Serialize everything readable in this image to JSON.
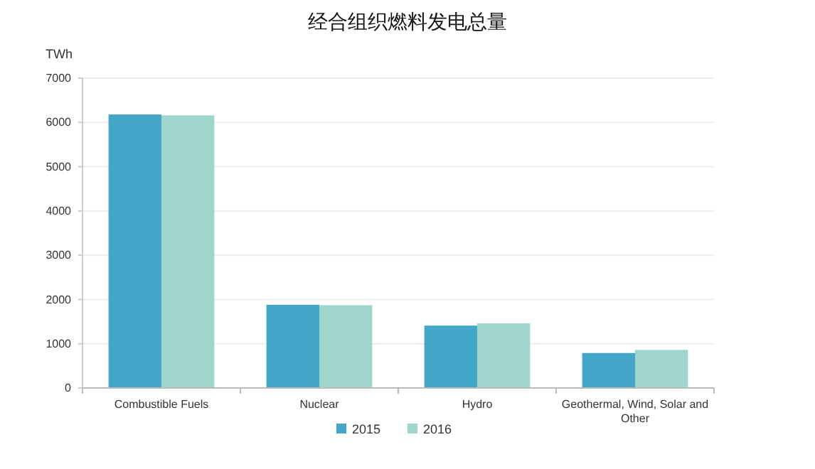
{
  "chart_data": {
    "type": "bar",
    "title": "经合组织燃料发电总量",
    "ylabel": "TWh",
    "categories": [
      "Combustible Fuels",
      "Nuclear",
      "Hydro",
      "Geothermal, Wind, Solar and Other"
    ],
    "series": [
      {
        "name": "2015",
        "color": "#43a7c9",
        "values": [
          6180,
          1880,
          1410,
          790
        ]
      },
      {
        "name": "2016",
        "color": "#9fd6cc",
        "values": [
          6160,
          1870,
          1460,
          860
        ]
      }
    ],
    "ylim": [
      0,
      7000
    ],
    "yticks": [
      0,
      1000,
      2000,
      3000,
      4000,
      5000,
      6000,
      7000
    ],
    "grid": "y",
    "legend": "bottom"
  }
}
